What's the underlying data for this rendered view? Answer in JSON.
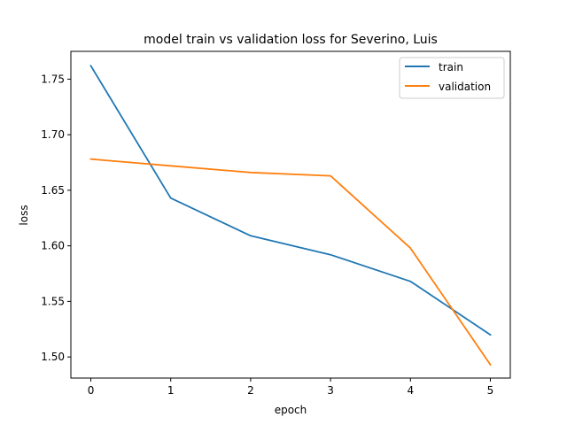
{
  "chart_data": {
    "type": "line",
    "title": "model train vs validation loss for Severino, Luis",
    "xlabel": "epoch",
    "ylabel": "loss",
    "x": [
      0,
      1,
      2,
      3,
      4,
      5
    ],
    "xticks": [
      "0",
      "1",
      "2",
      "3",
      "4",
      "5"
    ],
    "yticks": [
      "1.50",
      "1.55",
      "1.60",
      "1.65",
      "1.70",
      "1.75"
    ],
    "xlim": [
      -0.25,
      5.25
    ],
    "ylim": [
      1.481,
      1.775
    ],
    "grid": false,
    "legend_position": "top-right",
    "series": [
      {
        "name": "train",
        "color": "#1f77b4",
        "values": [
          1.762,
          1.643,
          1.609,
          1.592,
          1.568,
          1.52
        ]
      },
      {
        "name": "validation",
        "color": "#ff7f0e",
        "values": [
          1.678,
          1.672,
          1.666,
          1.663,
          1.598,
          1.493
        ]
      }
    ]
  }
}
